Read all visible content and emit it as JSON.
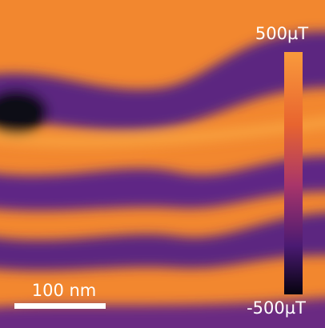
{
  "colorbar": {
    "max_label": "500µT",
    "min_label": "-500µT"
  },
  "scale_bar": {
    "label": "100 nm"
  }
}
